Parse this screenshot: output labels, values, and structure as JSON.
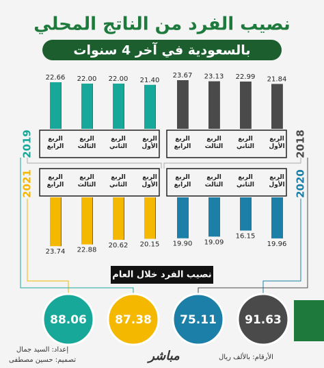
{
  "title": "نصيب الفرد من الناتج المحلي",
  "subtitle": "بالسعودية في آخر 4 سنوات",
  "summary_label": "نصيب الفرد خلال العام",
  "unit_note": "الأرقام: بالألف ريال",
  "brand": "مباشر",
  "credits": [
    "إعداد: السيد جمال",
    "تصميم: حسين مصطفى"
  ],
  "chart_data": [
    {
      "type": "bar",
      "title": "2019",
      "categories": [
        "الربع الرابع",
        "الربع الثالث",
        "الربع الثاني",
        "الربع الأول"
      ],
      "values": [
        22.66,
        22.0,
        22.0,
        21.4
      ],
      "value_labels": [
        "22.66",
        "22.00",
        "22.00",
        "21.40"
      ],
      "color": "#17a89a",
      "ylim": [
        0,
        24
      ],
      "total": 88.06
    },
    {
      "type": "bar",
      "title": "2018",
      "categories": [
        "الربع الرابع",
        "الربع الثالث",
        "الربع الثاني",
        "الربع الأول"
      ],
      "values": [
        23.67,
        23.13,
        22.99,
        21.84
      ],
      "color": "#4a4a4a",
      "ylim": [
        0,
        24
      ],
      "total": 91.63
    },
    {
      "type": "bar",
      "title": "2021",
      "categories": [
        "الربع الرابع",
        "الربع الثالث",
        "الربع الثاني",
        "الربع الأول"
      ],
      "values": [
        23.74,
        22.88,
        20.62,
        20.15
      ],
      "color": "#f5b800",
      "ylim": [
        0,
        24
      ],
      "total": 87.38
    },
    {
      "type": "bar",
      "title": "2020",
      "categories": [
        "الربع الرابع",
        "الربع الثالث",
        "الربع الثاني",
        "الربع الأول"
      ],
      "values": [
        19.9,
        19.09,
        16.15,
        19.96
      ],
      "value_labels": [
        "19.90",
        "19.09",
        "16.15",
        "19.96"
      ],
      "color": "#1b7fa8",
      "ylim": [
        0,
        24
      ],
      "total": 75.11
    }
  ]
}
